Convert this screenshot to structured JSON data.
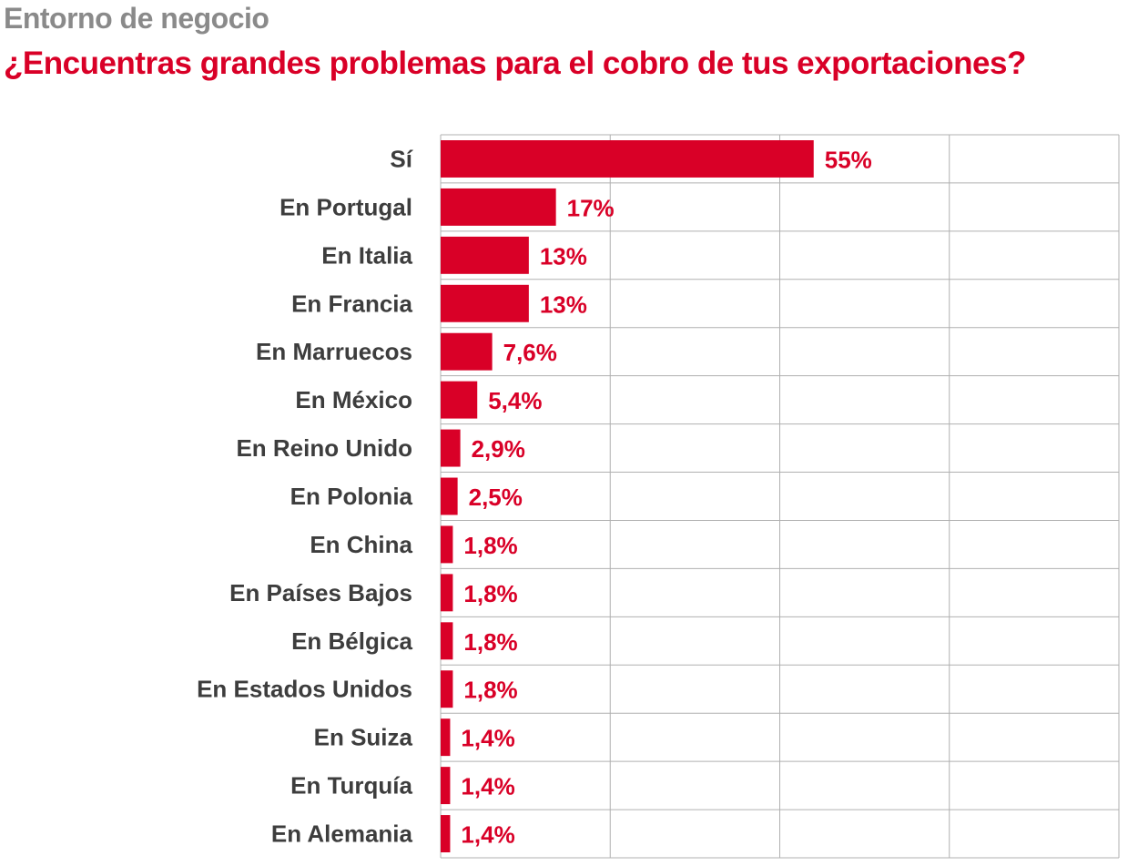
{
  "header": {
    "kicker": "Entorno de negocio",
    "title": "¿Encuentras grandes problemas para el cobro de tus exportaciones?"
  },
  "colors": {
    "accent": "#d90027",
    "kicker": "#8a8a8a",
    "label": "#3d3d3d",
    "grid": "#b0b0b0"
  },
  "chart_data": {
    "type": "bar",
    "orientation": "horizontal",
    "title": "¿Encuentras grandes problemas para el cobro de tus exportaciones?",
    "categories": [
      "Sí",
      "En Portugal",
      "En Italia",
      "En Francia",
      "En Marruecos",
      "En México",
      "En Reino Unido",
      "En Polonia",
      "En China",
      "En Países Bajos",
      "En Bélgica",
      "En Estados Unidos",
      "En Suiza",
      "En Turquía",
      "En Alemania"
    ],
    "values": [
      55,
      17,
      13,
      13,
      7.6,
      5.4,
      2.9,
      2.5,
      1.8,
      1.8,
      1.8,
      1.8,
      1.4,
      1.4,
      1.4
    ],
    "value_labels": [
      "55%",
      "17%",
      "13%",
      "13%",
      "7,6%",
      "5,4%",
      "2,9%",
      "2,5%",
      "1,8%",
      "1,8%",
      "1,8%",
      "1,8%",
      "1,4%",
      "1,4%",
      "1,4%"
    ],
    "xlim": [
      0,
      100
    ],
    "grid": true,
    "x_tick_labels_shown": false
  }
}
